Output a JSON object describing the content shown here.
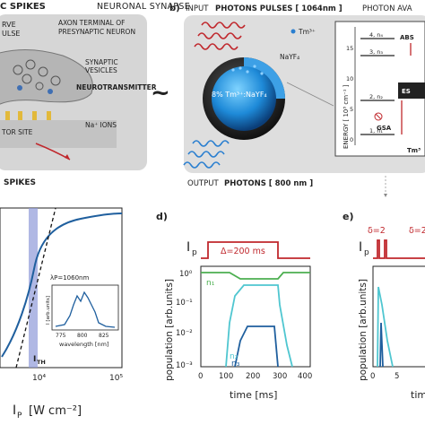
{
  "panel_a": {
    "heading": "C SPIKES",
    "title": "NEURONAL SYNAPSE",
    "label_nerve": "RVE",
    "label_pulse": "ULSE",
    "axon_line1": "AXON TERMINAL OF",
    "axon_line2": "PRESYNAPTIC NEURON",
    "vesicles_line1": "SYNAPTIC",
    "vesicles_line2": "VESICLES",
    "neurotransmitter": "NEUROTRANSMITTER",
    "receptor": "TOR SITE",
    "na_ions": "Na⁺ IONS",
    "bottom_label": "SPIKES"
  },
  "tilde": "~",
  "panel_b": {
    "letter": "b)",
    "input_prefix": "INPUT",
    "input_label": "PHOTONS PULSES [ 1064nm ]",
    "avalanche_label": "PHOTON AVA",
    "tm_legend": "Tm³⁺",
    "host_label": "NaYF₄",
    "core_label": "8% Tm³⁺:NaYF₄",
    "output_prefix": "OUTPUT",
    "output_label": "PHOTONS [ 800 nm ]",
    "energy_axis": "ENERGY [ 10³ cm⁻¹ ]",
    "energy_ticks": [
      "0",
      "5",
      "10",
      "15"
    ],
    "levels": [
      "4, n₄",
      "3, n₃",
      "2, n₂",
      "1, n₁"
    ],
    "abs_label": "ABS",
    "es_label": "ES",
    "gsa_label": "GSA",
    "tm_bottom": "Tm³"
  },
  "panel_c": {
    "ylabel": "ith",
    "xlabel": "I",
    "xlabel_sub": "P",
    "xlabel_unit": "[W cm⁻²]",
    "x_ticks": [
      "10⁴",
      "10⁵"
    ],
    "ith_label": "I",
    "ith_sub": "TH",
    "inset": {
      "lambda_label": "λP=1060nm",
      "ylabel": "I [arb.units]",
      "xlabel": "wavelength [nm]",
      "x_ticks": [
        "775",
        "800",
        "825"
      ]
    }
  },
  "panel_d": {
    "letter": "d)",
    "pulse_label": "I",
    "pulse_sub": "p",
    "delta_label": "Δ=200 ms",
    "ylabel": "population [arb.units]",
    "xlabel": "time [ms]",
    "y_ticks": [
      "10⁰",
      "10⁻¹",
      "10⁻²",
      "10⁻³"
    ],
    "x_ticks": [
      "0",
      "100",
      "200",
      "300",
      "400"
    ],
    "curve_labels": [
      "n₁",
      "n₂",
      "n₃"
    ]
  },
  "panel_e": {
    "letter": "e)",
    "pulse_label": "I",
    "pulse_sub": "p",
    "delta1": "δ=2",
    "delta2": "δ=2",
    "ylabel": "population [arb.units]",
    "xlabel": "tim",
    "x_ticks": [
      "0",
      "5"
    ]
  },
  "colors": {
    "red": "#c0282d",
    "dark_blue": "#1f5f9e",
    "cyan": "#4fc6d0",
    "green": "#4caf50",
    "shade": "#8e9ad8"
  }
}
